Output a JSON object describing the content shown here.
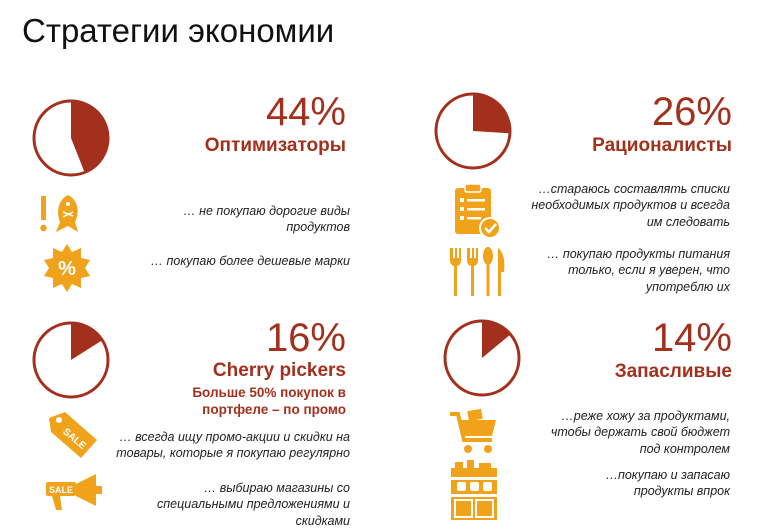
{
  "page": {
    "title": "Стратегии экономии"
  },
  "colors": {
    "accent": "#a3301c",
    "icon": "#f0a21a"
  },
  "segments": [
    {
      "percent_label": "44%",
      "share": 0.44,
      "name": "Оптимизаторы",
      "statements": [
        {
          "icon": "exclamation-fish-icon",
          "text": "… не покупаю дорогие виды продуктов"
        },
        {
          "icon": "percent-badge-icon",
          "text": "… покупаю более дешевые марки"
        }
      ]
    },
    {
      "percent_label": "26%",
      "share": 0.26,
      "name": "Рационалисты",
      "statements": [
        {
          "icon": "clipboard-checklist-icon",
          "text": "…стараюсь составлять списки необходимых продуктов и всегда им следовать"
        },
        {
          "icon": "cutlery-icon",
          "text": "… покупаю продукты питания только, если я уверен, что употреблю их"
        }
      ]
    },
    {
      "percent_label": "16%",
      "share": 0.16,
      "name": "Cherry pickers",
      "note": "Больше  50% покупок в портфеле – по промо",
      "statements": [
        {
          "icon": "sale-tag-icon",
          "text": "… всегда ищу промо-акции и скидки на товары, которые я покупаю регулярно"
        },
        {
          "icon": "sale-megaphone-icon",
          "text": "… выбираю магазины со специальными предложениями и скидками"
        }
      ]
    },
    {
      "percent_label": "14%",
      "share": 0.14,
      "name": "Запасливые",
      "statements": [
        {
          "icon": "shopping-cart-icon",
          "text": "…реже хожу за продуктами, чтобы держать свой бюджет под контролем"
        },
        {
          "icon": "pantry-shelves-icon",
          "text": "…покупаю и запасаю продукты впрок"
        }
      ]
    }
  ]
}
